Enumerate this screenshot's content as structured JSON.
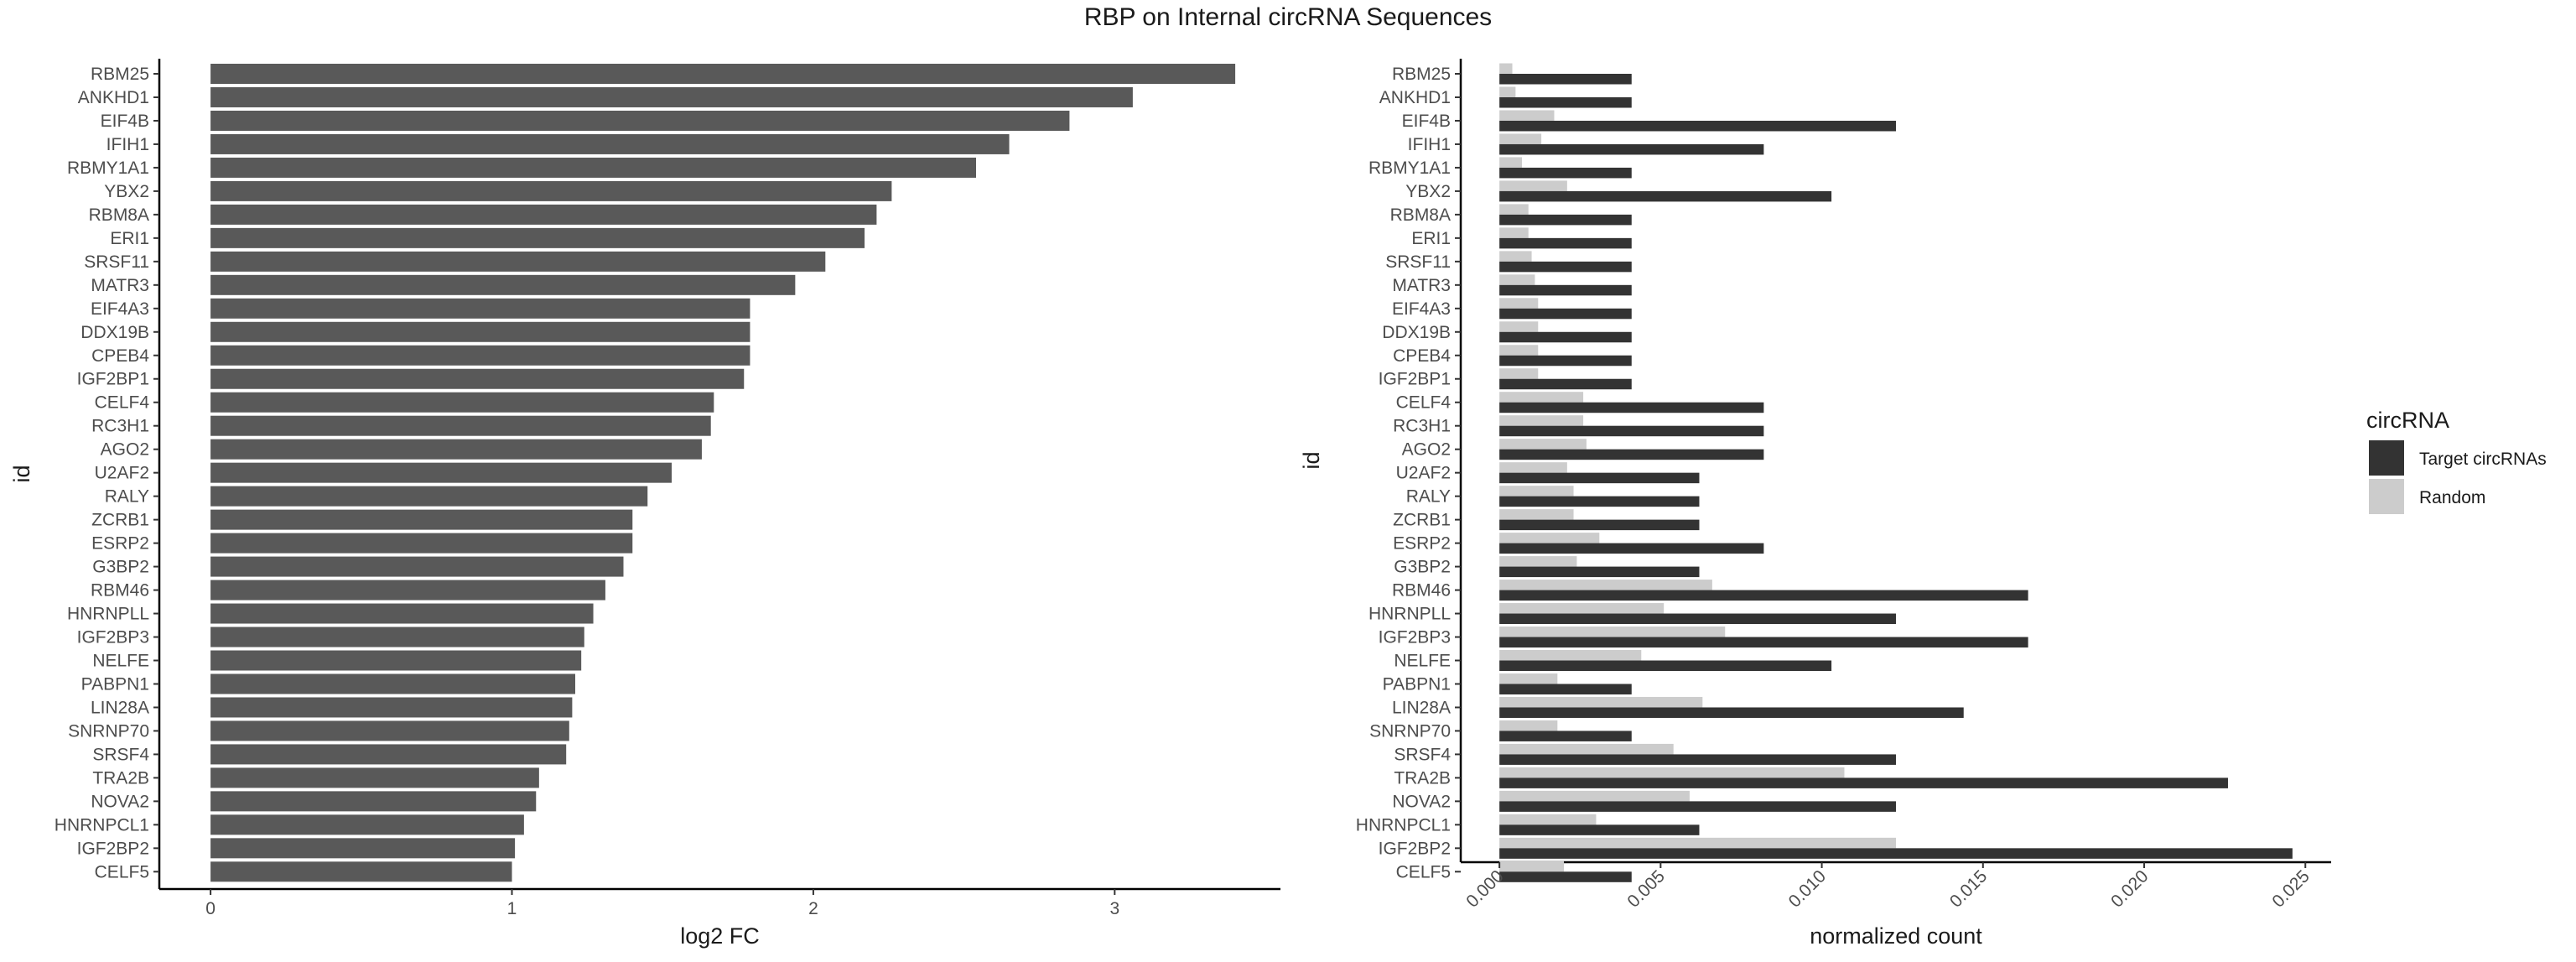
{
  "title": "RBP on Internal circRNA Sequences",
  "chart_data": [
    {
      "type": "bar",
      "orientation": "horizontal",
      "xlabel": "log2 FC",
      "ylabel": "id",
      "xlim": [
        -0.17,
        3.55
      ],
      "xticks": [
        "0",
        "1",
        "2",
        "3"
      ],
      "color": "#595959",
      "categories": [
        "RBM25",
        "ANKHD1",
        "EIF4B",
        "IFIH1",
        "RBMY1A1",
        "YBX2",
        "RBM8A",
        "ERI1",
        "SRSF11",
        "MATR3",
        "EIF4A3",
        "DDX19B",
        "CPEB4",
        "IGF2BP1",
        "CELF4",
        "RC3H1",
        "AGO2",
        "U2AF2",
        "RALY",
        "ZCRB1",
        "ESRP2",
        "G3BP2",
        "RBM46",
        "HNRNPLL",
        "IGF2BP3",
        "NELFE",
        "PABPN1",
        "LIN28A",
        "SNRNP70",
        "SRSF4",
        "TRA2B",
        "NOVA2",
        "HNRNPCL1",
        "IGF2BP2",
        "CELF5"
      ],
      "values": [
        3.4,
        3.06,
        2.85,
        2.65,
        2.54,
        2.26,
        2.21,
        2.17,
        2.04,
        1.94,
        1.79,
        1.79,
        1.79,
        1.77,
        1.67,
        1.66,
        1.63,
        1.53,
        1.45,
        1.4,
        1.4,
        1.37,
        1.31,
        1.27,
        1.24,
        1.23,
        1.21,
        1.2,
        1.19,
        1.18,
        1.09,
        1.08,
        1.04,
        1.01,
        1.0
      ]
    },
    {
      "type": "bar",
      "orientation": "horizontal",
      "grouped": true,
      "xlabel": "normalized count",
      "ylabel": "id",
      "xlim": [
        -0.0012,
        0.0258
      ],
      "xticks": [
        "0.000",
        "0.005",
        "0.010",
        "0.015",
        "0.020",
        "0.025"
      ],
      "categories": [
        "RBM25",
        "ANKHD1",
        "EIF4B",
        "IFIH1",
        "RBMY1A1",
        "YBX2",
        "RBM8A",
        "ERI1",
        "SRSF11",
        "MATR3",
        "EIF4A3",
        "DDX19B",
        "CPEB4",
        "IGF2BP1",
        "CELF4",
        "RC3H1",
        "AGO2",
        "U2AF2",
        "RALY",
        "ZCRB1",
        "ESRP2",
        "G3BP2",
        "RBM46",
        "HNRNPLL",
        "IGF2BP3",
        "NELFE",
        "PABPN1",
        "LIN28A",
        "SNRNP70",
        "SRSF4",
        "TRA2B",
        "NOVA2",
        "HNRNPCL1",
        "IGF2BP2",
        "CELF5"
      ],
      "legend_title": "circRNA",
      "legend_position": "right",
      "series": [
        {
          "name": "Target circRNAs",
          "color": "#333333",
          "values": [
            0.0041,
            0.0041,
            0.0123,
            0.0082,
            0.0041,
            0.0103,
            0.0041,
            0.0041,
            0.0041,
            0.0041,
            0.0041,
            0.0041,
            0.0041,
            0.0041,
            0.0082,
            0.0082,
            0.0082,
            0.0062,
            0.0062,
            0.0062,
            0.0082,
            0.0062,
            0.0164,
            0.0123,
            0.0164,
            0.0103,
            0.0041,
            0.0144,
            0.0041,
            0.0123,
            0.0226,
            0.0123,
            0.0062,
            0.0246,
            0.0041
          ]
        },
        {
          "name": "Random",
          "color": "#cccccc",
          "values": [
            0.0004,
            0.0005,
            0.0017,
            0.0013,
            0.0007,
            0.0021,
            0.0009,
            0.0009,
            0.001,
            0.0011,
            0.0012,
            0.0012,
            0.0012,
            0.0012,
            0.0026,
            0.0026,
            0.0027,
            0.0021,
            0.0023,
            0.0023,
            0.0031,
            0.0024,
            0.0066,
            0.0051,
            0.007,
            0.0044,
            0.0018,
            0.0063,
            0.0018,
            0.0054,
            0.0107,
            0.0059,
            0.003,
            0.0123,
            0.002
          ]
        }
      ]
    }
  ]
}
